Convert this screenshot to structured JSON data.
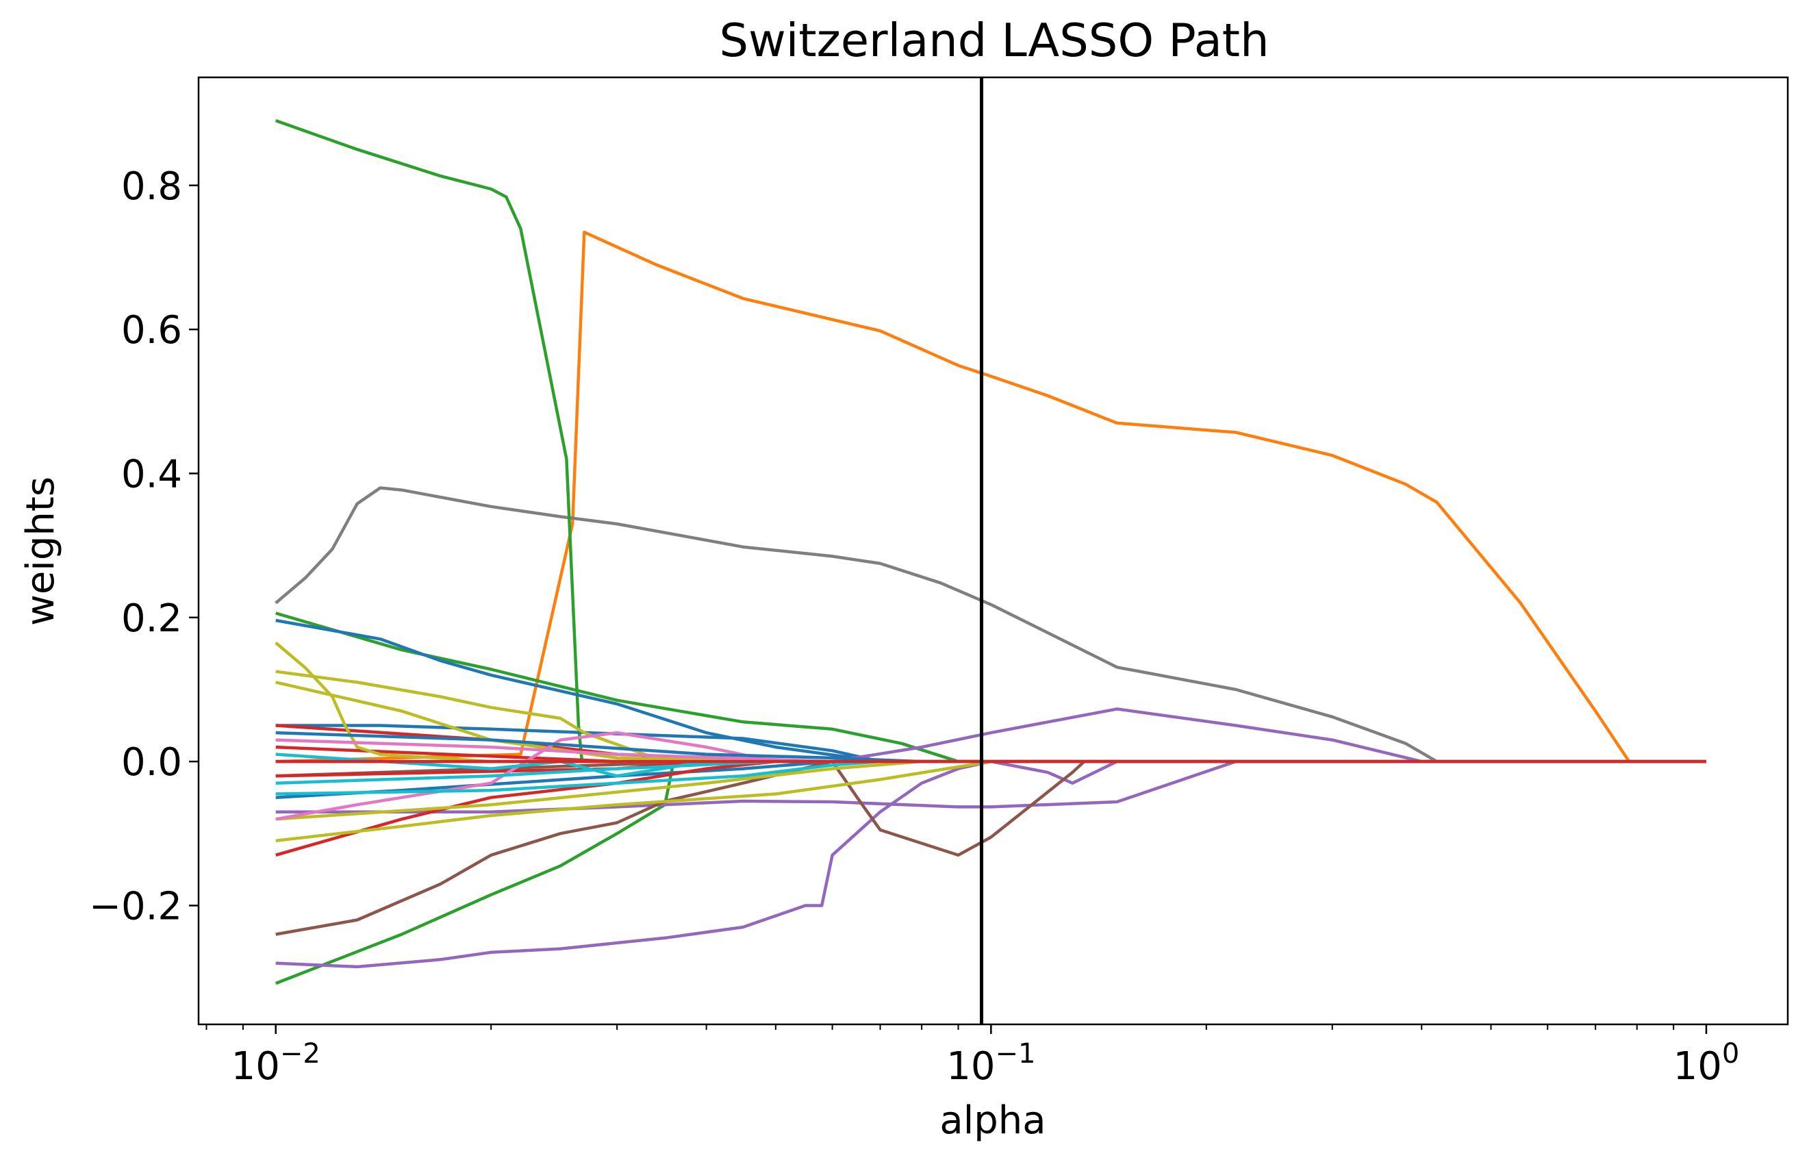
{
  "chart_data": {
    "type": "line",
    "title": "Switzerland LASSO Path",
    "xlabel": "alpha",
    "ylabel": "weights",
    "xscale": "log",
    "xlim": [
      0.0078,
      1.3
    ],
    "ylim": [
      -0.365,
      0.95
    ],
    "xticks": [
      {
        "value": 0.01,
        "base": "10",
        "exp": "−2"
      },
      {
        "value": 0.1,
        "base": "10",
        "exp": "−1"
      },
      {
        "value": 1,
        "base": "10",
        "exp": "0"
      }
    ],
    "yticks": [
      {
        "value": -0.2,
        "label": "−0.2"
      },
      {
        "value": 0.0,
        "label": "0.0"
      },
      {
        "value": 0.2,
        "label": "0.2"
      },
      {
        "value": 0.4,
        "label": "0.4"
      },
      {
        "value": 0.6,
        "label": "0.6"
      },
      {
        "value": 0.8,
        "label": "0.8"
      }
    ],
    "vline": {
      "x": 0.097,
      "color": "#000000"
    },
    "grid": false,
    "legend": "none",
    "series": [
      {
        "color": "#ff7f0e",
        "points": [
          [
            0.01,
            0.0
          ],
          [
            0.022,
            0.01
          ],
          [
            0.026,
            0.33
          ],
          [
            0.027,
            0.735
          ],
          [
            0.034,
            0.69
          ],
          [
            0.045,
            0.643
          ],
          [
            0.07,
            0.598
          ],
          [
            0.09,
            0.55
          ],
          [
            0.1,
            0.535
          ],
          [
            0.12,
            0.508
          ],
          [
            0.15,
            0.47
          ],
          [
            0.22,
            0.457
          ],
          [
            0.3,
            0.425
          ],
          [
            0.38,
            0.385
          ],
          [
            0.42,
            0.36
          ],
          [
            0.55,
            0.22
          ],
          [
            0.7,
            0.07
          ],
          [
            0.78,
            0.0
          ],
          [
            1.0,
            0.0
          ]
        ]
      },
      {
        "color": "#7f7f7f",
        "points": [
          [
            0.01,
            0.22
          ],
          [
            0.011,
            0.255
          ],
          [
            0.012,
            0.295
          ],
          [
            0.013,
            0.358
          ],
          [
            0.014,
            0.38
          ],
          [
            0.015,
            0.377
          ],
          [
            0.02,
            0.354
          ],
          [
            0.025,
            0.34
          ],
          [
            0.03,
            0.33
          ],
          [
            0.045,
            0.298
          ],
          [
            0.06,
            0.285
          ],
          [
            0.07,
            0.275
          ],
          [
            0.085,
            0.248
          ],
          [
            0.1,
            0.218
          ],
          [
            0.15,
            0.131
          ],
          [
            0.22,
            0.1
          ],
          [
            0.3,
            0.062
          ],
          [
            0.38,
            0.025
          ],
          [
            0.42,
            0.0
          ],
          [
            1.0,
            0.0
          ]
        ]
      },
      {
        "color": "#2ca02c",
        "points": [
          [
            0.01,
            0.89
          ],
          [
            0.013,
            0.85
          ],
          [
            0.017,
            0.813
          ],
          [
            0.02,
            0.795
          ],
          [
            0.021,
            0.784
          ],
          [
            0.022,
            0.74
          ],
          [
            0.0255,
            0.42
          ],
          [
            0.0265,
            0.05
          ],
          [
            0.0268,
            0.0
          ],
          [
            1.0,
            0.0
          ]
        ]
      },
      {
        "color": "#2ca02c",
        "points": [
          [
            0.01,
            0.206
          ],
          [
            0.015,
            0.155
          ],
          [
            0.02,
            0.128
          ],
          [
            0.03,
            0.085
          ],
          [
            0.045,
            0.055
          ],
          [
            0.06,
            0.045
          ],
          [
            0.075,
            0.025
          ],
          [
            0.09,
            0.0
          ],
          [
            1.0,
            0.0
          ]
        ]
      },
      {
        "color": "#2ca02c",
        "points": [
          [
            0.01,
            -0.308
          ],
          [
            0.015,
            -0.24
          ],
          [
            0.02,
            -0.185
          ],
          [
            0.025,
            -0.145
          ],
          [
            0.03,
            -0.1
          ],
          [
            0.035,
            -0.06
          ],
          [
            0.036,
            0.0
          ],
          [
            1.0,
            0.0
          ]
        ]
      },
      {
        "color": "#1f77b4",
        "points": [
          [
            0.01,
            0.196
          ],
          [
            0.014,
            0.17
          ],
          [
            0.017,
            0.14
          ],
          [
            0.02,
            0.12
          ],
          [
            0.03,
            0.08
          ],
          [
            0.04,
            0.04
          ],
          [
            0.05,
            0.02
          ],
          [
            0.07,
            0.0
          ],
          [
            1.0,
            0.0
          ]
        ]
      },
      {
        "color": "#1f77b4",
        "points": [
          [
            0.01,
            0.05
          ],
          [
            0.014,
            0.05
          ],
          [
            0.02,
            0.045
          ],
          [
            0.045,
            0.032
          ],
          [
            0.06,
            0.015
          ],
          [
            0.07,
            0.0
          ],
          [
            1.0,
            0.0
          ]
        ]
      },
      {
        "color": "#1f77b4",
        "points": [
          [
            0.01,
            -0.05
          ],
          [
            0.015,
            -0.04
          ],
          [
            0.03,
            -0.02
          ],
          [
            0.045,
            -0.01
          ],
          [
            0.06,
            0.0
          ],
          [
            1.0,
            0.0
          ]
        ]
      },
      {
        "color": "#9467bd",
        "points": [
          [
            0.01,
            -0.28
          ],
          [
            0.013,
            -0.285
          ],
          [
            0.017,
            -0.275
          ],
          [
            0.02,
            -0.265
          ],
          [
            0.025,
            -0.26
          ],
          [
            0.035,
            -0.245
          ],
          [
            0.045,
            -0.23
          ],
          [
            0.055,
            -0.2
          ],
          [
            0.058,
            -0.2
          ],
          [
            0.06,
            -0.13
          ],
          [
            0.07,
            -0.07
          ],
          [
            0.08,
            -0.03
          ],
          [
            0.09,
            -0.01
          ],
          [
            0.1,
            0.0
          ],
          [
            0.12,
            -0.015
          ],
          [
            0.13,
            -0.03
          ],
          [
            0.15,
            0.0
          ],
          [
            1.0,
            0.0
          ]
        ]
      },
      {
        "color": "#9467bd",
        "points": [
          [
            0.01,
            -0.07
          ],
          [
            0.02,
            -0.07
          ],
          [
            0.03,
            -0.063
          ],
          [
            0.045,
            -0.055
          ],
          [
            0.06,
            -0.056
          ],
          [
            0.09,
            -0.063
          ],
          [
            0.1,
            -0.063
          ],
          [
            0.15,
            -0.056
          ],
          [
            0.22,
            0.0
          ],
          [
            1.0,
            0.0
          ]
        ]
      },
      {
        "color": "#9467bd",
        "points": [
          [
            0.01,
            0.0
          ],
          [
            0.06,
            0.0
          ],
          [
            0.08,
            0.02
          ],
          [
            0.1,
            0.04
          ],
          [
            0.15,
            0.073
          ],
          [
            0.22,
            0.05
          ],
          [
            0.3,
            0.03
          ],
          [
            0.4,
            0.0
          ],
          [
            1.0,
            0.0
          ]
        ]
      },
      {
        "color": "#8c564b",
        "points": [
          [
            0.01,
            -0.24
          ],
          [
            0.013,
            -0.22
          ],
          [
            0.017,
            -0.17
          ],
          [
            0.02,
            -0.13
          ],
          [
            0.025,
            -0.1
          ],
          [
            0.03,
            -0.085
          ],
          [
            0.035,
            -0.055
          ],
          [
            0.045,
            -0.03
          ],
          [
            0.06,
            0.0
          ],
          [
            0.065,
            -0.05
          ],
          [
            0.07,
            -0.095
          ],
          [
            0.09,
            -0.13
          ],
          [
            0.1,
            -0.105
          ],
          [
            0.13,
            -0.015
          ],
          [
            0.135,
            0.0
          ],
          [
            1.0,
            0.0
          ]
        ]
      },
      {
        "color": "#8c564b",
        "points": [
          [
            0.01,
            -0.02
          ],
          [
            0.02,
            -0.01
          ],
          [
            0.04,
            0.0
          ],
          [
            1.0,
            0.0
          ]
        ]
      },
      {
        "color": "#d62728",
        "points": [
          [
            0.01,
            -0.13
          ],
          [
            0.015,
            -0.08
          ],
          [
            0.02,
            -0.05
          ],
          [
            0.03,
            -0.03
          ],
          [
            0.04,
            -0.01
          ],
          [
            0.05,
            0.0
          ],
          [
            1.0,
            0.0
          ]
        ]
      },
      {
        "color": "#d62728",
        "points": [
          [
            0.01,
            0.05
          ],
          [
            0.02,
            0.03
          ],
          [
            0.03,
            0.01
          ],
          [
            0.04,
            0.005
          ],
          [
            0.05,
            0.0
          ],
          [
            1.0,
            0.0
          ]
        ]
      },
      {
        "color": "#d62728",
        "points": [
          [
            0.01,
            0.02
          ],
          [
            0.03,
            0.0
          ],
          [
            1.0,
            0.0
          ]
        ]
      },
      {
        "color": "#d62728",
        "points": [
          [
            0.01,
            -0.02
          ],
          [
            0.03,
            -0.01
          ],
          [
            0.04,
            0.0
          ],
          [
            1.0,
            0.0
          ]
        ]
      },
      {
        "color": "#bcbd22",
        "points": [
          [
            0.01,
            0.165
          ],
          [
            0.011,
            0.13
          ],
          [
            0.012,
            0.09
          ],
          [
            0.0125,
            0.05
          ],
          [
            0.013,
            0.02
          ],
          [
            0.014,
            0.01
          ],
          [
            0.02,
            0.0
          ],
          [
            1.0,
            0.0
          ]
        ]
      },
      {
        "color": "#bcbd22",
        "points": [
          [
            0.01,
            0.125
          ],
          [
            0.013,
            0.11
          ],
          [
            0.017,
            0.09
          ],
          [
            0.02,
            0.075
          ],
          [
            0.025,
            0.06
          ],
          [
            0.027,
            0.04
          ],
          [
            0.035,
            0.0
          ],
          [
            1.0,
            0.0
          ]
        ]
      },
      {
        "color": "#bcbd22",
        "points": [
          [
            0.01,
            0.11
          ],
          [
            0.015,
            0.07
          ],
          [
            0.02,
            0.03
          ],
          [
            0.03,
            0.005
          ],
          [
            0.05,
            0.0
          ],
          [
            1.0,
            0.0
          ]
        ]
      },
      {
        "color": "#bcbd22",
        "points": [
          [
            0.01,
            -0.11
          ],
          [
            0.015,
            -0.09
          ],
          [
            0.02,
            -0.075
          ],
          [
            0.03,
            -0.06
          ],
          [
            0.05,
            -0.045
          ],
          [
            0.07,
            -0.025
          ],
          [
            0.1,
            0.0
          ],
          [
            1.0,
            0.0
          ]
        ]
      },
      {
        "color": "#bcbd22",
        "points": [
          [
            0.01,
            -0.08
          ],
          [
            0.02,
            -0.06
          ],
          [
            0.04,
            -0.03
          ],
          [
            0.06,
            -0.01
          ],
          [
            0.08,
            0.0
          ],
          [
            1.0,
            0.0
          ]
        ]
      },
      {
        "color": "#e377c2",
        "points": [
          [
            0.01,
            -0.08
          ],
          [
            0.013,
            -0.06
          ],
          [
            0.02,
            -0.03
          ],
          [
            0.025,
            0.03
          ],
          [
            0.03,
            0.04
          ],
          [
            0.04,
            0.02
          ],
          [
            0.05,
            0.0
          ],
          [
            1.0,
            0.0
          ]
        ]
      },
      {
        "color": "#e377c2",
        "points": [
          [
            0.01,
            0.03
          ],
          [
            0.02,
            0.02
          ],
          [
            0.03,
            0.01
          ],
          [
            0.06,
            0.0
          ],
          [
            1.0,
            0.0
          ]
        ]
      },
      {
        "color": "#17becf",
        "points": [
          [
            0.01,
            -0.045
          ],
          [
            0.02,
            -0.04
          ],
          [
            0.03,
            -0.03
          ],
          [
            0.045,
            -0.02
          ],
          [
            0.06,
            -0.005
          ],
          [
            0.07,
            0.0
          ],
          [
            1.0,
            0.0
          ]
        ]
      },
      {
        "color": "#17becf",
        "points": [
          [
            0.01,
            0.01
          ],
          [
            0.02,
            -0.01
          ],
          [
            0.025,
            0.0
          ],
          [
            0.03,
            -0.02
          ],
          [
            0.04,
            0.0
          ],
          [
            1.0,
            0.0
          ]
        ]
      },
      {
        "color": "#17becf",
        "points": [
          [
            0.01,
            -0.03
          ],
          [
            0.02,
            -0.02
          ],
          [
            0.03,
            -0.01
          ],
          [
            0.05,
            0.0
          ],
          [
            1.0,
            0.0
          ]
        ]
      },
      {
        "color": "#1f77b4",
        "points": [
          [
            0.01,
            0.04
          ],
          [
            0.02,
            0.03
          ],
          [
            0.04,
            0.01
          ],
          [
            0.06,
            0.005
          ],
          [
            0.08,
            0.0
          ],
          [
            1.0,
            0.0
          ]
        ]
      },
      {
        "color": "#d62728",
        "points": [
          [
            0.01,
            0.0
          ],
          [
            1.0,
            0.0
          ]
        ]
      }
    ]
  }
}
